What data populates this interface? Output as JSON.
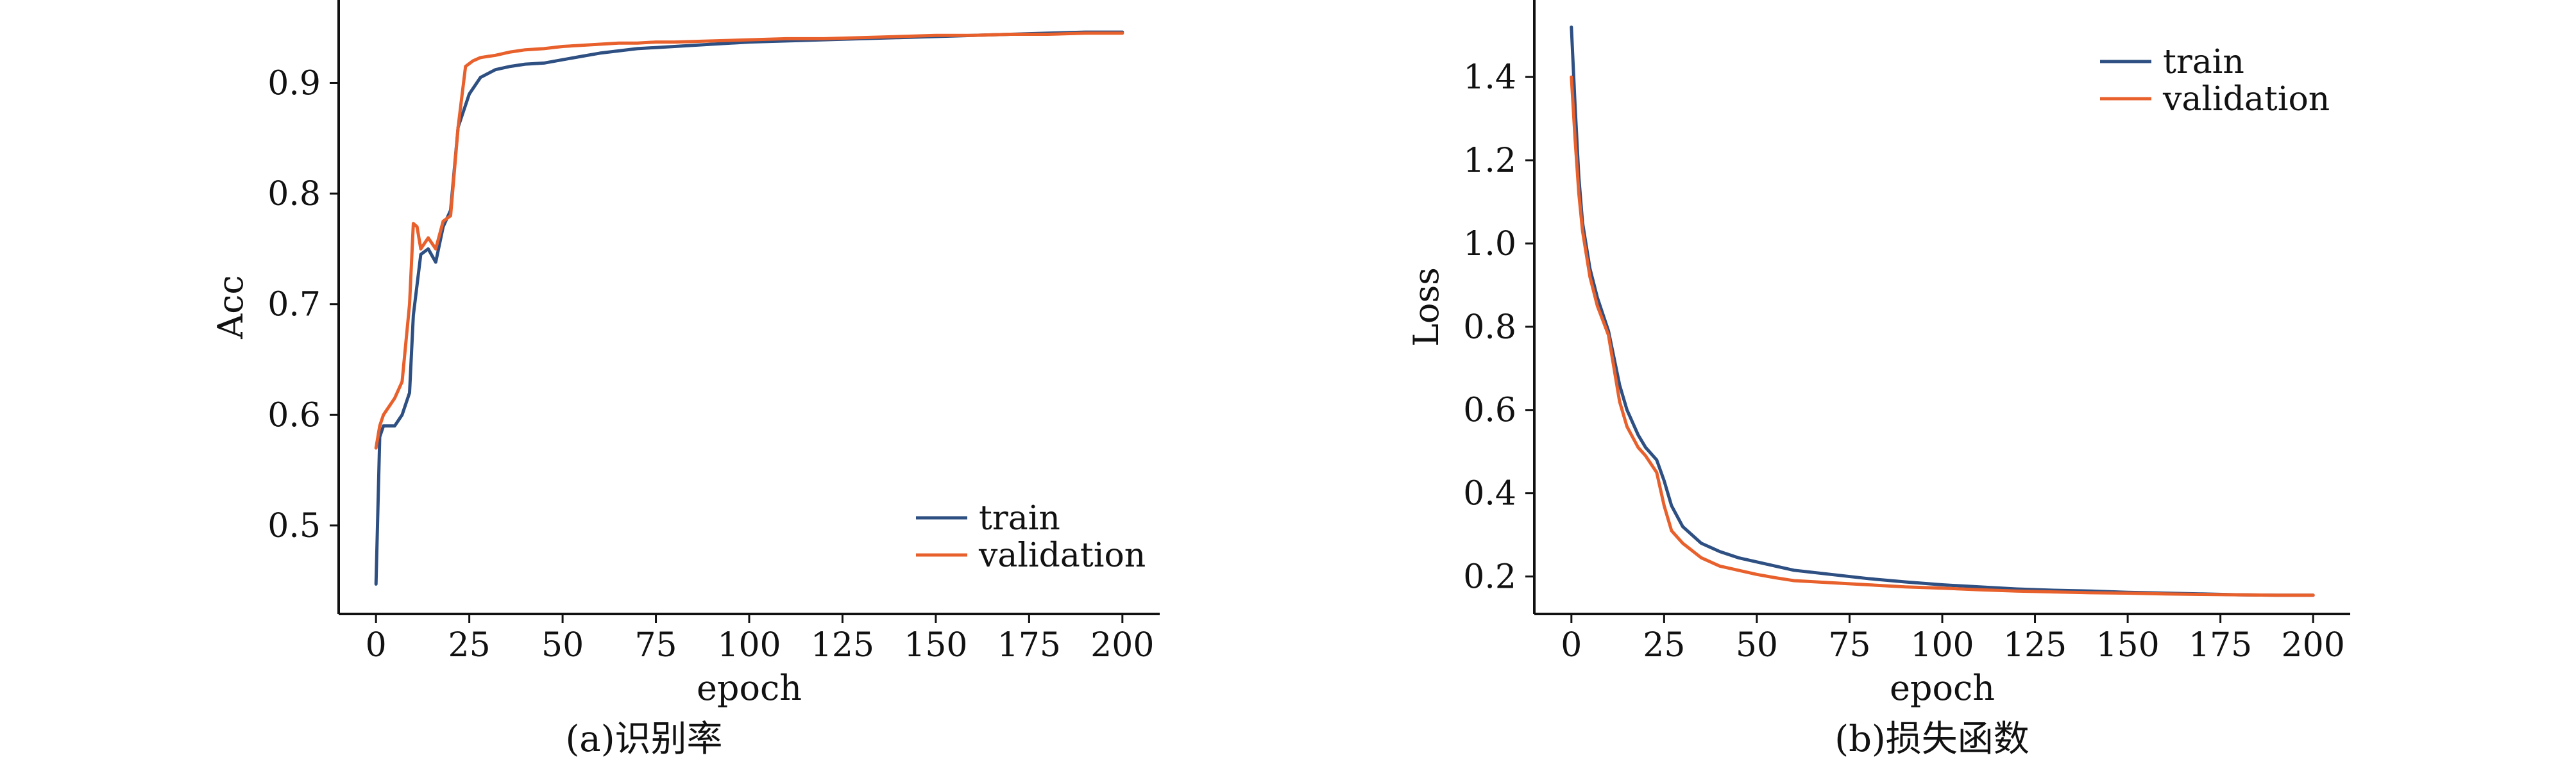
{
  "panels": [
    {
      "caption": "(a)识别率"
    },
    {
      "caption": "(b)损失函数"
    }
  ],
  "chart_data": [
    {
      "type": "line",
      "xlabel": "epoch",
      "ylabel": "Acc",
      "xlim": [
        -10,
        210
      ],
      "ylim": [
        0.42,
        0.975
      ],
      "xticks": [
        0,
        25,
        50,
        75,
        100,
        125,
        150,
        175,
        200
      ],
      "yticks": [
        0.5,
        0.6,
        0.7,
        0.8,
        0.9
      ],
      "ytick_labels": [
        "0.5",
        "0.6",
        "0.7",
        "0.8",
        "0.9"
      ],
      "legend_position": "bottom-right",
      "grid": false,
      "series": [
        {
          "name": "train",
          "color": "#2e4f82",
          "x": [
            0,
            1,
            2,
            3,
            5,
            7,
            9,
            10,
            12,
            14,
            16,
            18,
            20,
            22,
            25,
            28,
            32,
            36,
            40,
            45,
            50,
            55,
            60,
            65,
            70,
            75,
            80,
            90,
            100,
            110,
            120,
            130,
            140,
            150,
            160,
            170,
            180,
            190,
            200
          ],
          "y": [
            0.447,
            0.58,
            0.59,
            0.59,
            0.59,
            0.6,
            0.62,
            0.69,
            0.745,
            0.75,
            0.738,
            0.77,
            0.785,
            0.86,
            0.89,
            0.905,
            0.912,
            0.915,
            0.917,
            0.918,
            0.921,
            0.924,
            0.927,
            0.929,
            0.931,
            0.932,
            0.933,
            0.935,
            0.937,
            0.938,
            0.939,
            0.94,
            0.941,
            0.942,
            0.943,
            0.944,
            0.945,
            0.946,
            0.946
          ]
        },
        {
          "name": "validation",
          "color": "#e8602c",
          "x": [
            0,
            1,
            2,
            3,
            5,
            7,
            9,
            10,
            11,
            12,
            13,
            14,
            16,
            18,
            20,
            22,
            24,
            26,
            28,
            32,
            36,
            40,
            45,
            50,
            55,
            60,
            65,
            70,
            75,
            80,
            90,
            100,
            110,
            120,
            130,
            140,
            150,
            160,
            170,
            180,
            190,
            200
          ],
          "y": [
            0.57,
            0.59,
            0.6,
            0.605,
            0.615,
            0.63,
            0.7,
            0.773,
            0.77,
            0.75,
            0.755,
            0.76,
            0.75,
            0.775,
            0.78,
            0.86,
            0.915,
            0.92,
            0.923,
            0.925,
            0.928,
            0.93,
            0.931,
            0.933,
            0.934,
            0.935,
            0.936,
            0.936,
            0.937,
            0.937,
            0.938,
            0.939,
            0.94,
            0.94,
            0.941,
            0.942,
            0.943,
            0.943,
            0.944,
            0.944,
            0.945,
            0.945
          ]
        }
      ]
    },
    {
      "type": "line",
      "xlabel": "epoch",
      "ylabel": "Loss",
      "xlim": [
        -10,
        210
      ],
      "ylim": [
        0.11,
        1.585
      ],
      "xticks": [
        0,
        25,
        50,
        75,
        100,
        125,
        150,
        175,
        200
      ],
      "yticks": [
        0.2,
        0.4,
        0.6,
        0.8,
        1.0,
        1.2,
        1.4
      ],
      "ytick_labels": [
        "0.2",
        "0.4",
        "0.6",
        "0.8",
        "1.0",
        "1.2",
        "1.4"
      ],
      "legend_position": "top-right",
      "grid": false,
      "series": [
        {
          "name": "train",
          "color": "#2e4f82",
          "x": [
            0,
            1,
            2,
            3,
            5,
            7,
            10,
            13,
            15,
            18,
            20,
            23,
            25,
            27,
            30,
            35,
            40,
            45,
            50,
            55,
            60,
            70,
            80,
            90,
            100,
            110,
            120,
            130,
            140,
            150,
            160,
            170,
            180,
            190,
            200
          ],
          "y": [
            1.52,
            1.33,
            1.16,
            1.05,
            0.94,
            0.87,
            0.79,
            0.66,
            0.6,
            0.54,
            0.51,
            0.48,
            0.43,
            0.37,
            0.32,
            0.28,
            0.26,
            0.245,
            0.235,
            0.225,
            0.215,
            0.205,
            0.195,
            0.187,
            0.18,
            0.175,
            0.17,
            0.167,
            0.165,
            0.162,
            0.16,
            0.158,
            0.156,
            0.155,
            0.155
          ]
        },
        {
          "name": "validation",
          "color": "#e8602c",
          "x": [
            0,
            1,
            2,
            3,
            5,
            7,
            10,
            13,
            15,
            18,
            20,
            23,
            25,
            27,
            30,
            35,
            40,
            45,
            50,
            55,
            60,
            70,
            80,
            90,
            100,
            110,
            120,
            130,
            140,
            150,
            160,
            170,
            180,
            190,
            200
          ],
          "y": [
            1.4,
            1.25,
            1.12,
            1.03,
            0.92,
            0.85,
            0.78,
            0.62,
            0.56,
            0.51,
            0.49,
            0.45,
            0.37,
            0.31,
            0.28,
            0.245,
            0.225,
            0.215,
            0.205,
            0.197,
            0.19,
            0.185,
            0.18,
            0.175,
            0.172,
            0.168,
            0.165,
            0.163,
            0.161,
            0.16,
            0.158,
            0.157,
            0.156,
            0.155,
            0.155
          ]
        }
      ]
    }
  ]
}
